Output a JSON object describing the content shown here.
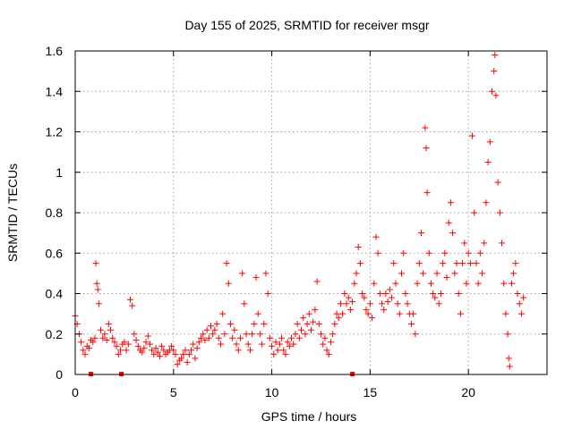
{
  "chart_data": {
    "type": "scatter",
    "title": "Day 155 of 2025, SRMTID for receiver msgr",
    "xlabel": "GPS time / hours",
    "ylabel": "SRMTID / TECUs",
    "xlim": [
      0,
      24
    ],
    "ylim": [
      0,
      1.6
    ],
    "x_ticks": [
      {
        "value": 0,
        "label": "0"
      },
      {
        "value": 5,
        "label": "5"
      },
      {
        "value": 10,
        "label": "10"
      },
      {
        "value": 15,
        "label": "15"
      },
      {
        "value": 20,
        "label": "20"
      }
    ],
    "y_ticks": [
      {
        "value": 0,
        "label": "0"
      },
      {
        "value": 0.2,
        "label": "0.2"
      },
      {
        "value": 0.4,
        "label": "0.4"
      },
      {
        "value": 0.6,
        "label": "0.6"
      },
      {
        "value": 0.8,
        "label": "0.8"
      },
      {
        "value": 1.0,
        "label": "1"
      },
      {
        "value": 1.2,
        "label": "1.2"
      },
      {
        "value": 1.4,
        "label": "1.4"
      },
      {
        "value": 1.6,
        "label": "1.6"
      }
    ],
    "grid": true,
    "series": [
      {
        "name": "SRMTID",
        "color": "#ff0000",
        "marker": "plus",
        "points": [
          [
            0.0,
            0.29
          ],
          [
            0.1,
            0.25
          ],
          [
            0.2,
            0.2
          ],
          [
            0.3,
            0.16
          ],
          [
            0.4,
            0.12
          ],
          [
            0.5,
            0.1
          ],
          [
            0.6,
            0.14
          ],
          [
            0.7,
            0.13
          ],
          [
            0.8,
            0.17
          ],
          [
            0.9,
            0.16
          ],
          [
            1.0,
            0.18
          ],
          [
            1.05,
            0.55
          ],
          [
            1.1,
            0.45
          ],
          [
            1.15,
            0.42
          ],
          [
            1.2,
            0.35
          ],
          [
            1.3,
            0.22
          ],
          [
            1.4,
            0.18
          ],
          [
            1.5,
            0.2
          ],
          [
            1.6,
            0.17
          ],
          [
            1.7,
            0.25
          ],
          [
            1.8,
            0.22
          ],
          [
            1.9,
            0.18
          ],
          [
            2.0,
            0.16
          ],
          [
            2.1,
            0.14
          ],
          [
            2.2,
            0.1
          ],
          [
            2.3,
            0.12
          ],
          [
            2.4,
            0.15
          ],
          [
            2.5,
            0.16
          ],
          [
            2.6,
            0.12
          ],
          [
            2.7,
            0.15
          ],
          [
            2.8,
            0.37
          ],
          [
            2.9,
            0.34
          ],
          [
            3.0,
            0.2
          ],
          [
            3.1,
            0.17
          ],
          [
            3.2,
            0.14
          ],
          [
            3.3,
            0.12
          ],
          [
            3.4,
            0.11
          ],
          [
            3.5,
            0.13
          ],
          [
            3.6,
            0.16
          ],
          [
            3.7,
            0.19
          ],
          [
            3.8,
            0.15
          ],
          [
            3.9,
            0.12
          ],
          [
            4.0,
            0.1
          ],
          [
            4.1,
            0.13
          ],
          [
            4.2,
            0.11
          ],
          [
            4.3,
            0.09
          ],
          [
            4.4,
            0.14
          ],
          [
            4.5,
            0.12
          ],
          [
            4.6,
            0.1
          ],
          [
            4.7,
            0.11
          ],
          [
            4.8,
            0.12
          ],
          [
            4.9,
            0.14
          ],
          [
            5.0,
            0.12
          ],
          [
            5.1,
            0.1
          ],
          [
            5.2,
            0.05
          ],
          [
            5.3,
            0.07
          ],
          [
            5.4,
            0.08
          ],
          [
            5.5,
            0.1
          ],
          [
            5.6,
            0.12
          ],
          [
            5.7,
            0.06
          ],
          [
            5.8,
            0.1
          ],
          [
            5.9,
            0.12
          ],
          [
            6.0,
            0.15
          ],
          [
            6.1,
            0.08
          ],
          [
            6.2,
            0.13
          ],
          [
            6.3,
            0.16
          ],
          [
            6.4,
            0.18
          ],
          [
            6.5,
            0.2
          ],
          [
            6.6,
            0.17
          ],
          [
            6.7,
            0.22
          ],
          [
            6.8,
            0.18
          ],
          [
            6.9,
            0.24
          ],
          [
            7.0,
            0.2
          ],
          [
            7.1,
            0.22
          ],
          [
            7.2,
            0.25
          ],
          [
            7.3,
            0.18
          ],
          [
            7.4,
            0.15
          ],
          [
            7.5,
            0.3
          ],
          [
            7.6,
            0.2
          ],
          [
            7.7,
            0.55
          ],
          [
            7.8,
            0.45
          ],
          [
            7.9,
            0.25
          ],
          [
            8.0,
            0.18
          ],
          [
            8.1,
            0.22
          ],
          [
            8.2,
            0.15
          ],
          [
            8.3,
            0.12
          ],
          [
            8.4,
            0.18
          ],
          [
            8.5,
            0.5
          ],
          [
            8.6,
            0.35
          ],
          [
            8.7,
            0.2
          ],
          [
            8.8,
            0.15
          ],
          [
            8.9,
            0.12
          ],
          [
            9.0,
            0.2
          ],
          [
            9.1,
            0.25
          ],
          [
            9.2,
            0.48
          ],
          [
            9.3,
            0.3
          ],
          [
            9.4,
            0.2
          ],
          [
            9.5,
            0.15
          ],
          [
            9.6,
            0.25
          ],
          [
            9.7,
            0.5
          ],
          [
            9.8,
            0.4
          ],
          [
            9.9,
            0.18
          ],
          [
            10.0,
            0.14
          ],
          [
            10.1,
            0.1
          ],
          [
            10.2,
            0.16
          ],
          [
            10.3,
            0.12
          ],
          [
            10.4,
            0.15
          ],
          [
            10.5,
            0.18
          ],
          [
            10.6,
            0.12
          ],
          [
            10.7,
            0.1
          ],
          [
            10.8,
            0.16
          ],
          [
            10.9,
            0.14
          ],
          [
            11.0,
            0.18
          ],
          [
            11.1,
            0.15
          ],
          [
            11.2,
            0.2
          ],
          [
            11.3,
            0.25
          ],
          [
            11.4,
            0.18
          ],
          [
            11.5,
            0.22
          ],
          [
            11.6,
            0.28
          ],
          [
            11.7,
            0.2
          ],
          [
            11.8,
            0.25
          ],
          [
            11.9,
            0.3
          ],
          [
            12.0,
            0.22
          ],
          [
            12.1,
            0.26
          ],
          [
            12.2,
            0.32
          ],
          [
            12.3,
            0.46
          ],
          [
            12.4,
            0.25
          ],
          [
            12.5,
            0.2
          ],
          [
            12.6,
            0.15
          ],
          [
            12.7,
            0.18
          ],
          [
            12.8,
            0.12
          ],
          [
            12.9,
            0.1
          ],
          [
            13.0,
            0.16
          ],
          [
            13.1,
            0.2
          ],
          [
            13.2,
            0.25
          ],
          [
            13.3,
            0.3
          ],
          [
            13.4,
            0.28
          ],
          [
            13.5,
            0.35
          ],
          [
            13.6,
            0.3
          ],
          [
            13.7,
            0.4
          ],
          [
            13.8,
            0.35
          ],
          [
            13.9,
            0.38
          ],
          [
            14.0,
            0.32
          ],
          [
            14.1,
            0.36
          ],
          [
            14.2,
            0.45
          ],
          [
            14.3,
            0.5
          ],
          [
            14.4,
            0.63
          ],
          [
            14.5,
            0.55
          ],
          [
            14.6,
            0.4
          ],
          [
            14.7,
            0.38
          ],
          [
            14.8,
            0.32
          ],
          [
            14.9,
            0.3
          ],
          [
            15.0,
            0.35
          ],
          [
            15.1,
            0.28
          ],
          [
            15.2,
            0.45
          ],
          [
            15.3,
            0.68
          ],
          [
            15.4,
            0.6
          ],
          [
            15.5,
            0.4
          ],
          [
            15.6,
            0.35
          ],
          [
            15.7,
            0.32
          ],
          [
            15.8,
            0.4
          ],
          [
            15.9,
            0.36
          ],
          [
            16.0,
            0.42
          ],
          [
            16.1,
            0.38
          ],
          [
            16.2,
            0.55
          ],
          [
            16.3,
            0.45
          ],
          [
            16.4,
            0.35
          ],
          [
            16.5,
            0.3
          ],
          [
            16.6,
            0.5
          ],
          [
            16.7,
            0.6
          ],
          [
            16.8,
            0.4
          ],
          [
            16.9,
            0.35
          ],
          [
            17.0,
            0.3
          ],
          [
            17.1,
            0.25
          ],
          [
            17.2,
            0.3
          ],
          [
            17.3,
            0.2
          ],
          [
            17.4,
            0.45
          ],
          [
            17.5,
            0.55
          ],
          [
            17.6,
            0.7
          ],
          [
            17.7,
            0.5
          ],
          [
            17.8,
            1.22
          ],
          [
            17.85,
            1.12
          ],
          [
            17.9,
            0.9
          ],
          [
            18.0,
            0.6
          ],
          [
            18.1,
            0.45
          ],
          [
            18.2,
            0.4
          ],
          [
            18.3,
            0.38
          ],
          [
            18.4,
            0.5
          ],
          [
            18.5,
            0.35
          ],
          [
            18.6,
            0.4
          ],
          [
            18.7,
            0.55
          ],
          [
            18.8,
            0.6
          ],
          [
            18.9,
            0.48
          ],
          [
            19.0,
            0.75
          ],
          [
            19.1,
            0.85
          ],
          [
            19.2,
            0.7
          ],
          [
            19.3,
            0.5
          ],
          [
            19.4,
            0.55
          ],
          [
            19.5,
            0.4
          ],
          [
            19.6,
            0.3
          ],
          [
            19.7,
            0.55
          ],
          [
            19.8,
            0.65
          ],
          [
            19.9,
            0.45
          ],
          [
            20.0,
            0.6
          ],
          [
            20.1,
            0.55
          ],
          [
            20.2,
            1.18
          ],
          [
            20.3,
            0.8
          ],
          [
            20.4,
            0.55
          ],
          [
            20.5,
            0.45
          ],
          [
            20.6,
            0.6
          ],
          [
            20.7,
            0.5
          ],
          [
            20.8,
            0.65
          ],
          [
            20.9,
            0.85
          ],
          [
            21.0,
            1.05
          ],
          [
            21.1,
            1.15
          ],
          [
            21.2,
            1.4
          ],
          [
            21.3,
            1.5
          ],
          [
            21.35,
            1.58
          ],
          [
            21.4,
            1.38
          ],
          [
            21.5,
            0.95
          ],
          [
            21.6,
            0.8
          ],
          [
            21.7,
            0.65
          ],
          [
            21.8,
            0.45
          ],
          [
            21.9,
            0.3
          ],
          [
            22.0,
            0.2
          ],
          [
            22.05,
            0.08
          ],
          [
            22.1,
            0.04
          ],
          [
            22.2,
            0.45
          ],
          [
            22.3,
            0.5
          ],
          [
            22.4,
            0.55
          ],
          [
            22.5,
            0.4
          ],
          [
            22.6,
            0.35
          ],
          [
            22.7,
            0.3
          ],
          [
            22.8,
            0.38
          ]
        ]
      }
    ],
    "markers_on_axis": [
      0.8,
      2.35,
      14.1
    ]
  }
}
